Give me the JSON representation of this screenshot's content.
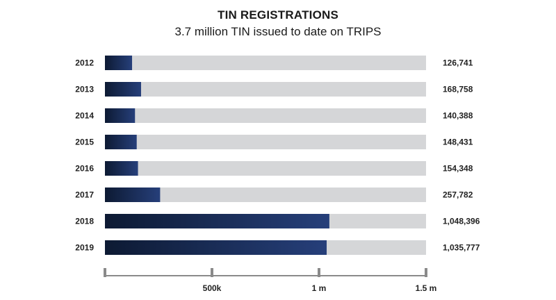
{
  "chart_data": {
    "type": "bar",
    "orientation": "horizontal",
    "title": "TIN REGISTRATIONS",
    "subtitle": "3.7 million TIN issued to date on TRIPS",
    "categories": [
      "2012",
      "2013",
      "2014",
      "2015",
      "2016",
      "2017",
      "2018",
      "2019"
    ],
    "values": [
      126741,
      168758,
      140388,
      148431,
      154348,
      257782,
      1048396,
      1035777
    ],
    "value_labels": [
      "126,741",
      "168,758",
      "140,388",
      "148,431",
      "154,348",
      "257,782",
      "1,048,396",
      "1,035,777"
    ],
    "xlim": [
      0,
      1500000
    ],
    "xticks": [
      0,
      500000,
      1000000,
      1500000
    ],
    "xtick_labels": [
      "",
      "500k",
      "1 m",
      "1.5 m"
    ],
    "grid": false,
    "colors": {
      "bar_dark": "#0d1a33",
      "bar_light": "#263f7a",
      "track": "#d5d6d8",
      "axis": "#8a8a8a"
    }
  }
}
